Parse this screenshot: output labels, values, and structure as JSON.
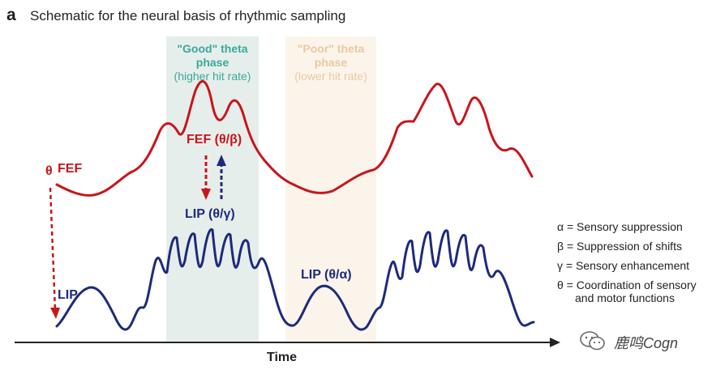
{
  "panel": {
    "letter": "a",
    "title": "Schematic for the neural basis of rhythmic sampling"
  },
  "bands": {
    "good": {
      "title_line1": "\"Good\" theta",
      "title_line2": "phase",
      "subtitle": "(higher hit rate)",
      "color": "#3aa89a",
      "fill": "#e6eeeb"
    },
    "poor": {
      "title_line1": "\"Poor\" theta",
      "title_line2": "phase",
      "subtitle": "(lower hit rate)",
      "color": "#e8c9a2",
      "fill": "#fbf4ea"
    }
  },
  "signals": {
    "fef_label": "FEF",
    "theta_label": "θ",
    "lip_label": "LIP",
    "fef_band_label": "FEF (θ/β)",
    "lip_good_label": "LIP (θ/γ)",
    "lip_poor_label": "LIP (θ/α)",
    "fef_color": "#c8151b",
    "lip_color": "#1d2a7c"
  },
  "legend": [
    {
      "text": "α = Sensory suppression"
    },
    {
      "text": "β = Suppression of shifts"
    },
    {
      "text": "γ = Sensory enhancement"
    },
    {
      "text": "θ = Coordination of sensory",
      "cont": "and motor functions"
    }
  ],
  "axis": {
    "label": "Time"
  },
  "watermark": {
    "text": "鹿鸣Cogn",
    "icon": "wechat-icon"
  }
}
